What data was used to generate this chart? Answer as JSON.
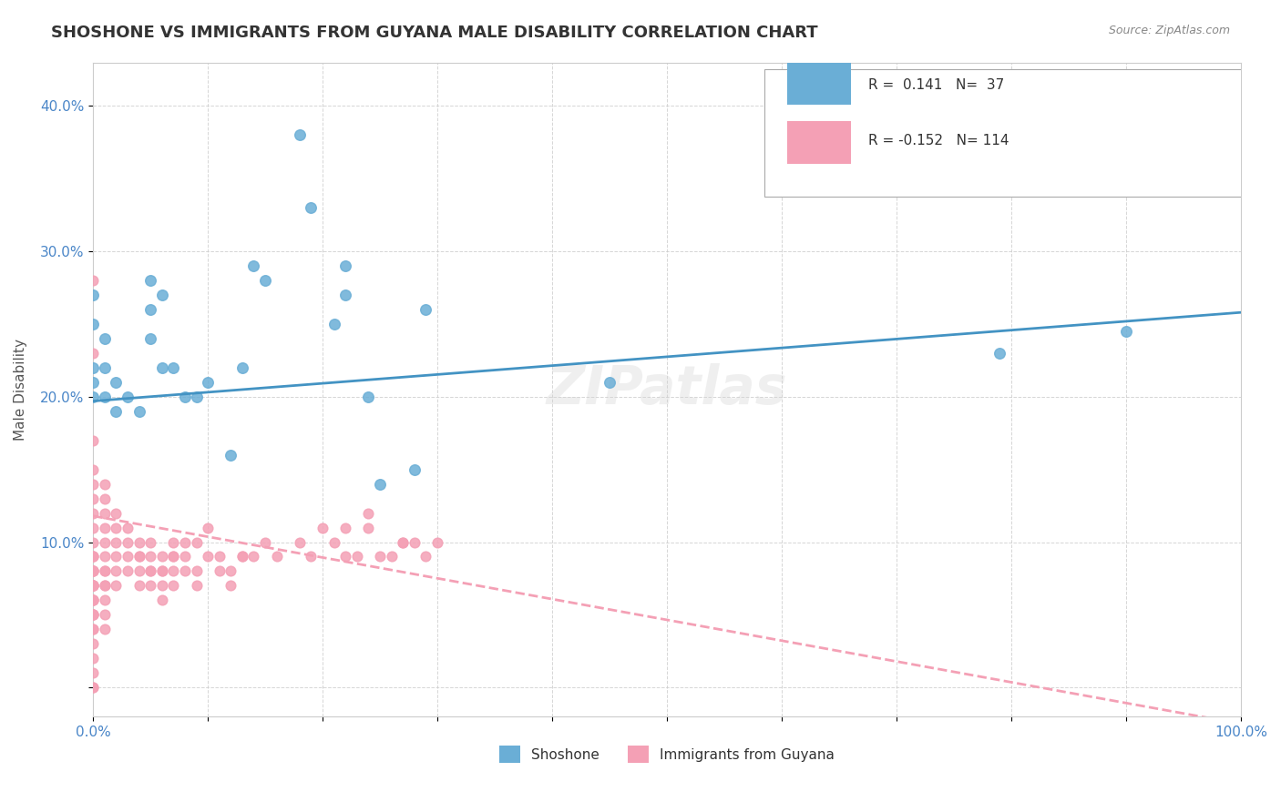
{
  "title": "SHOSHONE VS IMMIGRANTS FROM GUYANA MALE DISABILITY CORRELATION CHART",
  "source_text": "Source: ZipAtlas.com",
  "xlabel": "",
  "ylabel": "Male Disability",
  "xlim": [
    0.0,
    1.0
  ],
  "ylim": [
    -0.02,
    0.43
  ],
  "xticks": [
    0.0,
    0.1,
    0.2,
    0.3,
    0.4,
    0.5,
    0.6,
    0.7,
    0.8,
    0.9,
    1.0
  ],
  "xticklabels": [
    "0.0%",
    "",
    "",
    "",
    "",
    "",
    "",
    "",
    "",
    "",
    "100.0%"
  ],
  "yticks": [
    0.0,
    0.1,
    0.2,
    0.3,
    0.4
  ],
  "yticklabels": [
    "",
    "10.0%",
    "20.0%",
    "30.0%",
    "40.0%"
  ],
  "legend_r1": "R =  0.141",
  "legend_n1": "N=  37",
  "legend_r2": "R = -0.152",
  "legend_n2": "N= 114",
  "shoshone_color": "#6aaed6",
  "guyana_color": "#f4a0b5",
  "shoshone_line_color": "#4393c3",
  "guyana_line_color": "#f4a0b5",
  "watermark": "ZIPatlas",
  "shoshone_scatter_x": [
    0.0,
    0.0,
    0.0,
    0.0,
    0.0,
    0.01,
    0.01,
    0.01,
    0.02,
    0.02,
    0.03,
    0.04,
    0.05,
    0.05,
    0.05,
    0.06,
    0.06,
    0.07,
    0.08,
    0.09,
    0.1,
    0.12,
    0.13,
    0.14,
    0.15,
    0.18,
    0.19,
    0.21,
    0.22,
    0.22,
    0.24,
    0.25,
    0.28,
    0.29,
    0.45,
    0.79,
    0.9
  ],
  "shoshone_scatter_y": [
    0.27,
    0.25,
    0.22,
    0.21,
    0.2,
    0.24,
    0.22,
    0.2,
    0.21,
    0.19,
    0.2,
    0.19,
    0.28,
    0.26,
    0.24,
    0.27,
    0.22,
    0.22,
    0.2,
    0.2,
    0.21,
    0.16,
    0.22,
    0.29,
    0.28,
    0.38,
    0.33,
    0.25,
    0.27,
    0.29,
    0.2,
    0.14,
    0.15,
    0.26,
    0.21,
    0.23,
    0.245
  ],
  "guyana_scatter_x": [
    0.0,
    0.0,
    0.0,
    0.0,
    0.0,
    0.0,
    0.0,
    0.0,
    0.0,
    0.0,
    0.0,
    0.0,
    0.0,
    0.0,
    0.0,
    0.0,
    0.0,
    0.0,
    0.0,
    0.0,
    0.01,
    0.01,
    0.01,
    0.01,
    0.01,
    0.01,
    0.01,
    0.01,
    0.01,
    0.01,
    0.01,
    0.02,
    0.02,
    0.02,
    0.02,
    0.02,
    0.03,
    0.03,
    0.03,
    0.04,
    0.04,
    0.04,
    0.04,
    0.05,
    0.05,
    0.05,
    0.05,
    0.06,
    0.06,
    0.06,
    0.06,
    0.07,
    0.07,
    0.07,
    0.07,
    0.08,
    0.08,
    0.09,
    0.09,
    0.1,
    0.11,
    0.12,
    0.13,
    0.14,
    0.15,
    0.16,
    0.18,
    0.19,
    0.2,
    0.21,
    0.22,
    0.23,
    0.24,
    0.25,
    0.27,
    0.28,
    0.29,
    0.3,
    0.22,
    0.24,
    0.26,
    0.27,
    0.08,
    0.09,
    0.1,
    0.11,
    0.12,
    0.13,
    0.05,
    0.06,
    0.07,
    0.03,
    0.04,
    0.02,
    0.01,
    0.01,
    0.0,
    0.0,
    0.0,
    0.0,
    0.0,
    0.0,
    0.0,
    0.0,
    0.0,
    0.0,
    0.0,
    0.0,
    0.0,
    0.0,
    0.0,
    0.0,
    0.0,
    0.0
  ],
  "guyana_scatter_y": [
    0.28,
    0.23,
    0.17,
    0.15,
    0.14,
    0.13,
    0.12,
    0.11,
    0.1,
    0.09,
    0.08,
    0.07,
    0.06,
    0.05,
    0.04,
    0.03,
    0.02,
    0.01,
    0.0,
    0.0,
    0.14,
    0.13,
    0.12,
    0.11,
    0.1,
    0.09,
    0.08,
    0.07,
    0.06,
    0.05,
    0.04,
    0.12,
    0.11,
    0.1,
    0.09,
    0.08,
    0.11,
    0.1,
    0.09,
    0.1,
    0.09,
    0.08,
    0.07,
    0.1,
    0.09,
    0.08,
    0.07,
    0.09,
    0.08,
    0.07,
    0.06,
    0.1,
    0.09,
    0.08,
    0.07,
    0.09,
    0.08,
    0.08,
    0.07,
    0.09,
    0.08,
    0.07,
    0.09,
    0.09,
    0.1,
    0.09,
    0.1,
    0.09,
    0.11,
    0.1,
    0.09,
    0.09,
    0.11,
    0.09,
    0.1,
    0.1,
    0.09,
    0.1,
    0.11,
    0.12,
    0.09,
    0.1,
    0.1,
    0.1,
    0.11,
    0.09,
    0.08,
    0.09,
    0.08,
    0.08,
    0.09,
    0.08,
    0.09,
    0.07,
    0.08,
    0.07,
    0.08,
    0.07,
    0.06,
    0.05,
    0.06,
    0.05,
    0.04,
    0.05,
    0.07,
    0.07,
    0.08,
    0.07,
    0.08,
    0.09,
    0.09,
    0.08,
    0.07,
    0.06
  ],
  "shoshone_trend_x": [
    0.0,
    1.0
  ],
  "shoshone_trend_y": [
    0.197,
    0.258
  ],
  "guyana_trend_x": [
    0.0,
    1.0
  ],
  "guyana_trend_y": [
    0.118,
    -0.025
  ],
  "background_color": "#ffffff",
  "grid_color": "#cccccc"
}
